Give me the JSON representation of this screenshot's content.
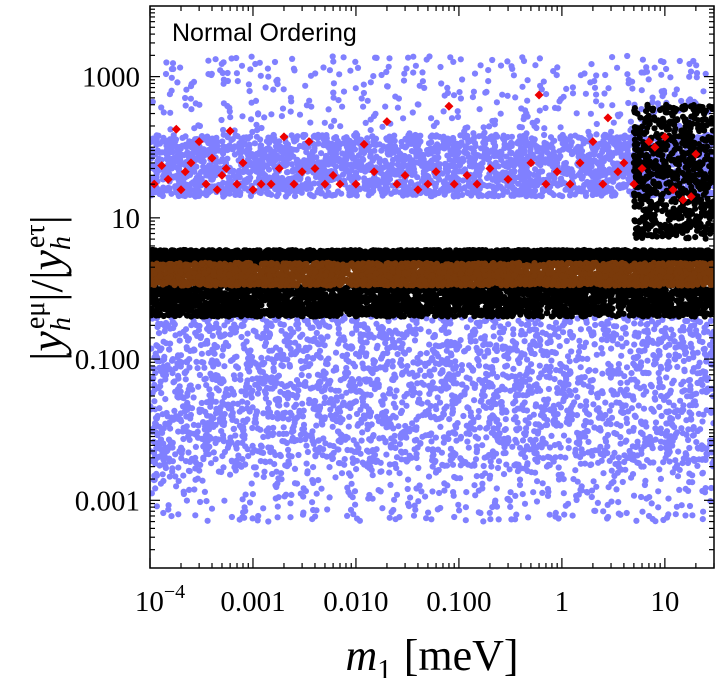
{
  "chart_data": {
    "type": "scatter",
    "annotation": "Normal Ordering",
    "xlabel": {
      "symbol": "m",
      "subscript": "1",
      "unit": "[meV]"
    },
    "ylabel": {
      "open_bar": "|",
      "numerator_symbol": "y",
      "numerator_sub": "h",
      "numerator_sup": "eμ",
      "mid_bars": "|/|",
      "denominator_symbol": "y",
      "denominator_sub": "h",
      "denominator_sup": "eτ",
      "close_bar": "|"
    },
    "x_scale": "log",
    "y_scale": "log",
    "xlim": [
      0.0001,
      30
    ],
    "ylim": [
      0.00011,
      10000
    ],
    "x_ticks": [
      {
        "value": 0.0001,
        "base": "10",
        "exp": "−4"
      },
      {
        "value": 0.001,
        "label": "0.001"
      },
      {
        "value": 0.01,
        "label": "0.010"
      },
      {
        "value": 0.1,
        "label": "0.100"
      },
      {
        "value": 1,
        "label": "1"
      },
      {
        "value": 10,
        "label": "10"
      }
    ],
    "y_ticks": [
      {
        "value": 0.001,
        "label": "0.001"
      },
      {
        "value": 0.1,
        "label": "0.100"
      },
      {
        "value": 10,
        "label": "10"
      },
      {
        "value": 1000,
        "label": "1000"
      }
    ],
    "series": [
      {
        "name": "blue-points",
        "color": "#8080ff",
        "bands": [
          {
            "y_range": [
              0.003,
              0.4
            ],
            "density": "dense"
          },
          {
            "y_range": [
              20,
              150
            ],
            "density": "dense"
          },
          {
            "y_range": [
              0.0005,
              0.003
            ],
            "density": "sparse"
          },
          {
            "y_range": [
              150,
              2000
            ],
            "density": "sparse"
          }
        ]
      },
      {
        "name": "black-points",
        "color": "#000000",
        "bands": [
          {
            "y_range": [
              0.4,
              1.1
            ],
            "density": "dense"
          },
          {
            "y_range": [
              2.3,
              3.5
            ],
            "density": "dense"
          },
          {
            "y_range": [
              5,
              400
            ],
            "x_range": [
              5,
              30
            ],
            "density": "medium"
          }
        ]
      },
      {
        "name": "brown-points",
        "color": "#7a3a0a",
        "bands": [
          {
            "y_range": [
              1.1,
              2.3
            ],
            "density": "dense"
          }
        ]
      },
      {
        "name": "red-points",
        "color": "#ee0000",
        "marker": "diamond",
        "points": [
          [
            0.00011,
            30
          ],
          [
            0.00013,
            55
          ],
          [
            0.00015,
            35
          ],
          [
            0.00018,
            180
          ],
          [
            0.0002,
            25
          ],
          [
            0.00022,
            45
          ],
          [
            0.00025,
            60
          ],
          [
            0.0003,
            120
          ],
          [
            0.00035,
            30
          ],
          [
            0.0004,
            70
          ],
          [
            0.00045,
            25
          ],
          [
            0.0005,
            40
          ],
          [
            0.00055,
            50
          ],
          [
            0.0006,
            170
          ],
          [
            0.0007,
            30
          ],
          [
            0.0008,
            60
          ],
          [
            0.001,
            25
          ],
          [
            0.0012,
            30
          ],
          [
            0.0015,
            30
          ],
          [
            0.0018,
            50
          ],
          [
            0.002,
            140
          ],
          [
            0.0025,
            30
          ],
          [
            0.003,
            45
          ],
          [
            0.0035,
            120
          ],
          [
            0.004,
            50
          ],
          [
            0.005,
            30
          ],
          [
            0.006,
            40
          ],
          [
            0.007,
            30
          ],
          [
            0.01,
            30
          ],
          [
            0.012,
            110
          ],
          [
            0.015,
            45
          ],
          [
            0.02,
            230
          ],
          [
            0.025,
            30
          ],
          [
            0.03,
            40
          ],
          [
            0.04,
            25
          ],
          [
            0.05,
            30
          ],
          [
            0.06,
            45
          ],
          [
            0.08,
            380
          ],
          [
            0.09,
            30
          ],
          [
            0.12,
            40
          ],
          [
            0.15,
            30
          ],
          [
            0.2,
            50
          ],
          [
            0.3,
            35
          ],
          [
            0.5,
            60
          ],
          [
            0.6,
            550
          ],
          [
            0.7,
            30
          ],
          [
            0.9,
            45
          ],
          [
            1.2,
            30
          ],
          [
            1.5,
            60
          ],
          [
            2,
            120
          ],
          [
            2.5,
            30
          ],
          [
            2.8,
            260
          ],
          [
            3.5,
            45
          ],
          [
            4,
            60
          ],
          [
            5,
            30
          ],
          [
            6,
            50
          ],
          [
            7,
            120
          ],
          [
            8,
            100
          ],
          [
            10,
            140
          ],
          [
            12,
            25
          ],
          [
            15,
            18
          ],
          [
            18,
            20
          ],
          [
            20,
            80
          ]
        ]
      }
    ]
  }
}
